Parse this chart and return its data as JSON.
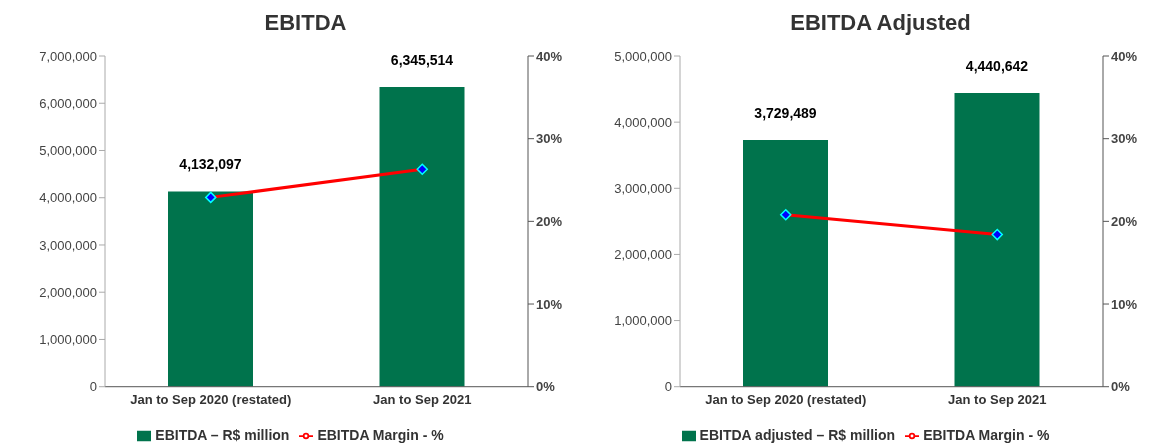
{
  "chart_data": [
    {
      "type": "bar",
      "title": "EBITDA",
      "categories": [
        "Jan to Sep 2020 (restated)",
        "Jan to Sep 2021"
      ],
      "ylim": [
        0,
        7000000
      ],
      "yticks": [
        {
          "value": 0,
          "label": "0"
        },
        {
          "value": 1000000,
          "label": "1,000,000"
        },
        {
          "value": 2000000,
          "label": "2,000,000"
        },
        {
          "value": 3000000,
          "label": "3,000,000"
        },
        {
          "value": 4000000,
          "label": "4,000,000"
        },
        {
          "value": 5000000,
          "label": "5,000,000"
        },
        {
          "value": 6000000,
          "label": "6,000,000"
        },
        {
          "value": 7000000,
          "label": "7,000,000"
        }
      ],
      "y2lim": [
        0,
        40
      ],
      "y2ticks": [
        {
          "value": 0,
          "label": "0%"
        },
        {
          "value": 10,
          "label": "10%"
        },
        {
          "value": 20,
          "label": "20%"
        },
        {
          "value": 30,
          "label": "30%"
        },
        {
          "value": 40,
          "label": "40%"
        }
      ],
      "grid": false,
      "legend": "bottom",
      "series": [
        {
          "name": "EBITDA – R$ million",
          "color": "#00734c",
          "values": [
            4132097,
            6345514
          ],
          "value_labels": [
            "4,132,097",
            "6,345,514"
          ]
        },
        {
          "type": "line",
          "name": "EBITDA Margin - %",
          "color": "#ff0000",
          "axis": "y2",
          "marker": "diamond",
          "values": [
            22.9,
            26.3
          ]
        }
      ]
    },
    {
      "type": "bar",
      "title": "EBITDA Adjusted",
      "categories": [
        "Jan to Sep 2020 (restated)",
        "Jan to Sep 2021"
      ],
      "ylim": [
        0,
        5000000
      ],
      "yticks": [
        {
          "value": 0,
          "label": "0"
        },
        {
          "value": 1000000,
          "label": "1,000,000"
        },
        {
          "value": 2000000,
          "label": "2,000,000"
        },
        {
          "value": 3000000,
          "label": "3,000,000"
        },
        {
          "value": 4000000,
          "label": "4,000,000"
        },
        {
          "value": 5000000,
          "label": "5,000,000"
        }
      ],
      "y2lim": [
        0,
        40
      ],
      "y2ticks": [
        {
          "value": 0,
          "label": "0%"
        },
        {
          "value": 10,
          "label": "10%"
        },
        {
          "value": 20,
          "label": "20%"
        },
        {
          "value": 30,
          "label": "30%"
        },
        {
          "value": 40,
          "label": "40%"
        }
      ],
      "grid": false,
      "legend": "bottom",
      "series": [
        {
          "name": "EBITDA adjusted – R$ million",
          "color": "#00734c",
          "values": [
            3729489,
            4440642
          ],
          "value_labels": [
            "3,729,489",
            "4,440,642"
          ]
        },
        {
          "type": "line",
          "name": "EBITDA Margin - %",
          "color": "#ff0000",
          "axis": "y2",
          "marker": "diamond",
          "values": [
            20.8,
            18.4
          ]
        }
      ]
    }
  ]
}
